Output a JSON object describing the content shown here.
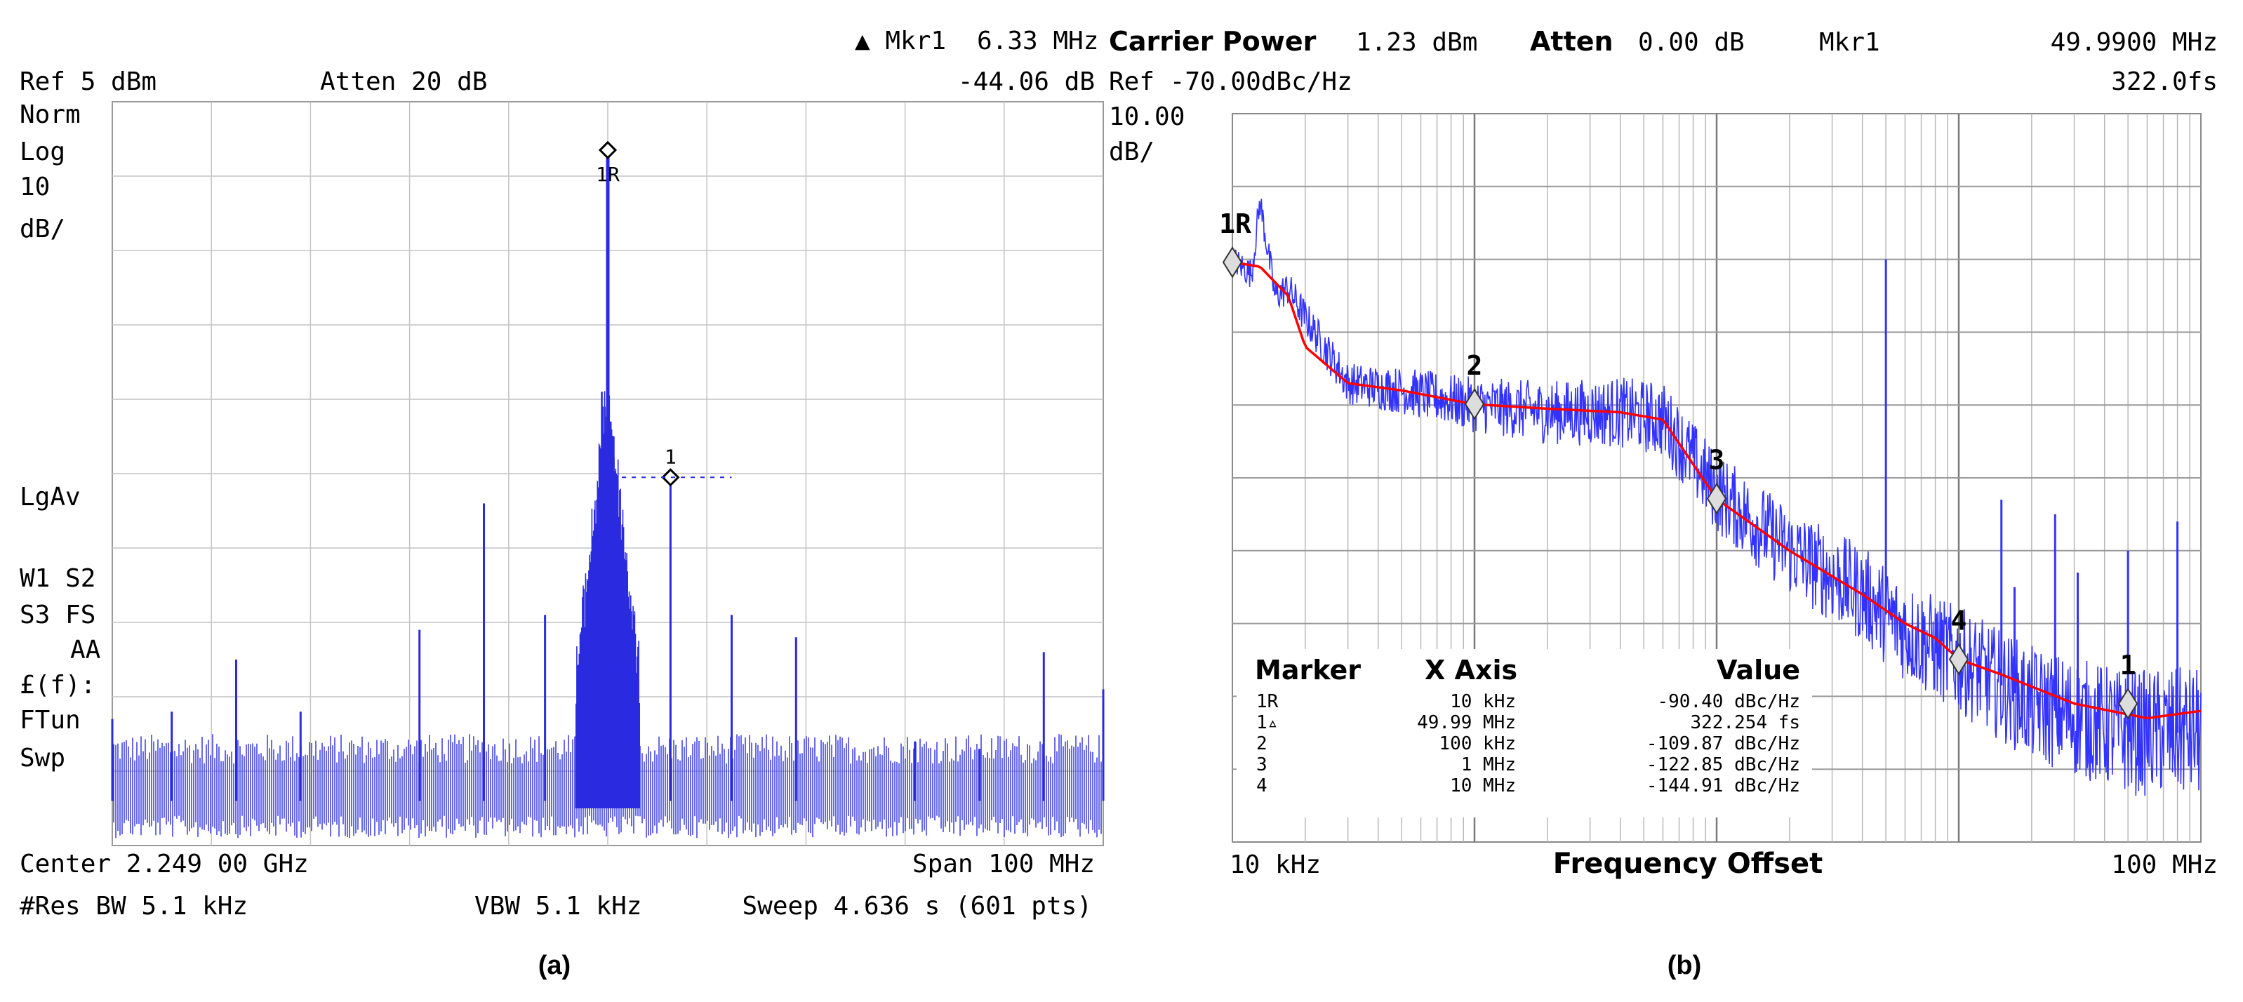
{
  "chart_data": [
    {
      "panel_label": "(a)",
      "type": "line",
      "header": {
        "delta_marker_label": "▲ Mkr1",
        "delta_marker_freq": "6.33 MHz",
        "delta_marker_value": "-44.06 dB",
        "ref_level": "Ref 5 dBm",
        "attenuation": "Atten 20 dB"
      },
      "left_annotations": [
        "Norm",
        "Log",
        "10",
        "dB/",
        "LgAv",
        "W1  S2",
        "S3  FS",
        "AA",
        "£(f):",
        "FTun",
        "Swp"
      ],
      "footer": {
        "center": "Center 2.249 00 GHz",
        "span": "Span 100 MHz",
        "res_bw": "#Res BW 5.1 kHz",
        "vbw": "VBW 5.1 kHz",
        "sweep": "Sweep 4.636 s (601 pts)"
      },
      "axis": {
        "x_offset_range_mhz": [
          -50,
          50
        ],
        "y_range_db": [
          -95,
          5
        ],
        "grid_divisions": [
          10,
          10
        ]
      },
      "carrier": {
        "offset_mhz": 0,
        "level_db": -1.5
      },
      "noise_floor_db": -86,
      "spurs": [
        {
          "offset_mhz": -50,
          "level_db": -78
        },
        {
          "offset_mhz": -44,
          "level_db": -77
        },
        {
          "offset_mhz": -37.5,
          "level_db": -70
        },
        {
          "offset_mhz": -31,
          "level_db": -77
        },
        {
          "offset_mhz": -19,
          "level_db": -66
        },
        {
          "offset_mhz": -12.5,
          "level_db": -49
        },
        {
          "offset_mhz": -6.33,
          "level_db": -64
        },
        {
          "offset_mhz": 6.33,
          "level_db": -45
        },
        {
          "offset_mhz": 12.5,
          "level_db": -64
        },
        {
          "offset_mhz": 19,
          "level_db": -67
        },
        {
          "offset_mhz": 31,
          "level_db": -81
        },
        {
          "offset_mhz": 37.5,
          "level_db": -82
        },
        {
          "offset_mhz": 44,
          "level_db": -69
        },
        {
          "offset_mhz": 50,
          "level_db": -74
        }
      ],
      "markers": [
        {
          "label": "1R",
          "offset_mhz": 0,
          "level_db": -1.5
        },
        {
          "label": "1",
          "offset_mhz": 6.33,
          "level_db": -45.5
        }
      ]
    },
    {
      "panel_label": "(b)",
      "type": "line",
      "header": {
        "carrier_power_label": "Carrier Power",
        "carrier_power_value": "1.23 dBm",
        "atten_label": "Atten",
        "atten_value": "0.00 dB",
        "marker_label": "Mkr1",
        "marker_freq": "49.9900 MHz",
        "ref": "Ref -70.00dBc/Hz",
        "jitter": "322.0fs",
        "scale": "10.00",
        "scale_unit": "dB/"
      },
      "xlabel": "Frequency Offset",
      "x_tick_left": "10 kHz",
      "x_tick_right": "100 MHz",
      "x_scale": "log",
      "xlim_hz": [
        10000,
        100000000
      ],
      "ylim_dbc_hz": [
        -170,
        -70
      ],
      "series": [
        {
          "color": "#3333ff",
          "x_hz": [
            10000,
            12000,
            13000,
            15000,
            17000,
            20000,
            30000,
            50000,
            100000,
            200000,
            400000,
            600000,
            1000000,
            2000000,
            4000000,
            6000000,
            10000000,
            20000000,
            50000000,
            100000000
          ],
          "y_dbc_hz": [
            -90,
            -92,
            -82,
            -95,
            -94,
            -98,
            -107,
            -108,
            -110,
            -111,
            -111,
            -112,
            -122,
            -130,
            -136,
            -141,
            -145,
            -151,
            -155,
            -155
          ]
        },
        {
          "color": "#ff0000",
          "x_hz": [
            10000,
            13000,
            17000,
            20000,
            30000,
            50000,
            100000,
            200000,
            400000,
            600000,
            1000000,
            2000000,
            4000000,
            6000000,
            8000000,
            10000000,
            15000000,
            30000000,
            60000000,
            100000000
          ],
          "y_dbc_hz": [
            -90.4,
            -91,
            -95,
            -102,
            -107,
            -108,
            -109.9,
            -110.5,
            -111,
            -112,
            -122.9,
            -130,
            -136,
            -140,
            -142,
            -144.9,
            -147,
            -151,
            -153,
            -152
          ]
        }
      ],
      "spurs": [
        {
          "x_hz": 5000000,
          "level_dbc_hz": -90
        },
        {
          "x_hz": 15000000,
          "level_dbc_hz": -123
        },
        {
          "x_hz": 17000000,
          "level_dbc_hz": -135
        },
        {
          "x_hz": 25000000,
          "level_dbc_hz": -125
        },
        {
          "x_hz": 31000000,
          "level_dbc_hz": -133
        },
        {
          "x_hz": 50000000,
          "level_dbc_hz": -130
        },
        {
          "x_hz": 80000000,
          "level_dbc_hz": -126
        }
      ],
      "marker_table": {
        "headers": [
          "Marker",
          "X Axis",
          "Value"
        ],
        "rows": [
          [
            "1R",
            "10 kHz",
            "-90.40 dBc/Hz"
          ],
          [
            "1▵",
            "49.99 MHz",
            "322.254 fs"
          ],
          [
            "2",
            "100 kHz",
            "-109.87 dBc/Hz"
          ],
          [
            "3",
            "1 MHz",
            "-122.85 dBc/Hz"
          ],
          [
            "4",
            "10 MHz",
            "-144.91 dBc/Hz"
          ]
        ]
      },
      "markers": [
        {
          "label": "1R",
          "x_hz": 10000,
          "y_dbc_hz": -90.4
        },
        {
          "label": "2",
          "x_hz": 100000,
          "y_dbc_hz": -109.87
        },
        {
          "label": "3",
          "x_hz": 1000000,
          "y_dbc_hz": -122.85
        },
        {
          "label": "4",
          "x_hz": 10000000,
          "y_dbc_hz": -144.91
        },
        {
          "label": "1",
          "x_hz": 49990000,
          "y_dbc_hz": -151
        }
      ]
    }
  ]
}
